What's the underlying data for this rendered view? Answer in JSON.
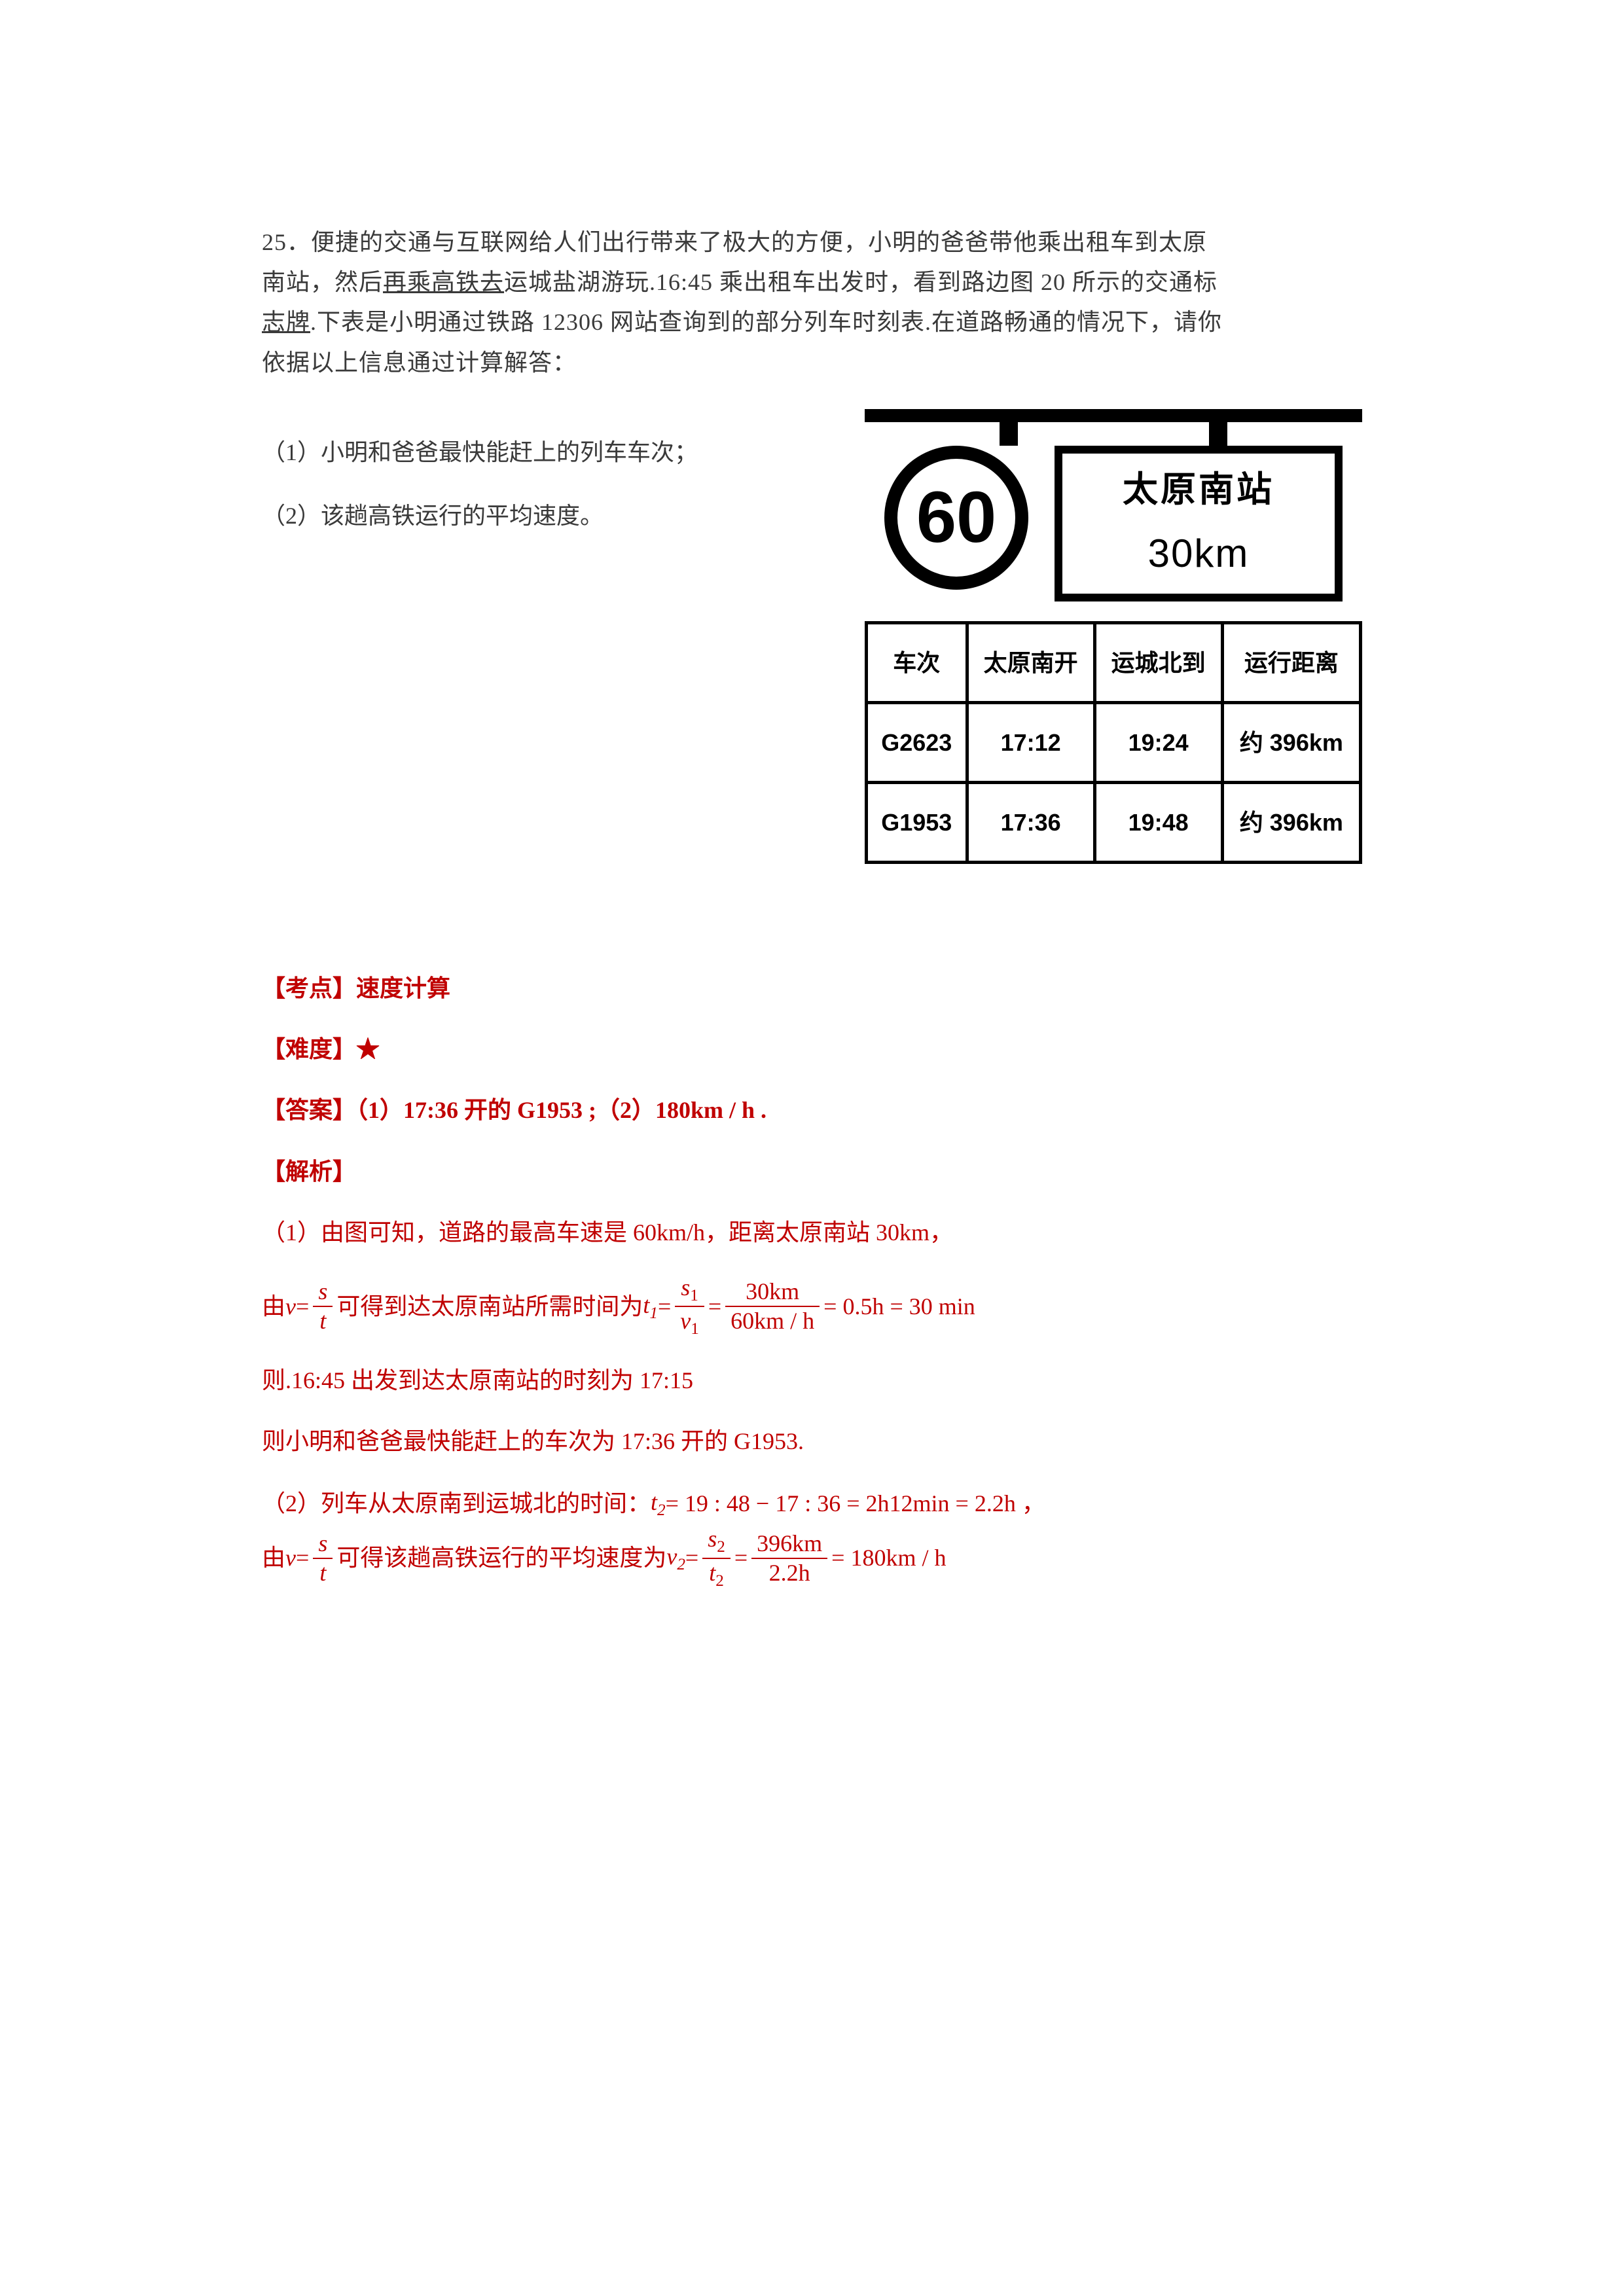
{
  "question": {
    "number": "25．",
    "text_line1": "便捷的交通与互联网给人们出行带来了极大的方便，小明的爸爸带他乘出租车到太原",
    "text_line2_pre": "南站，然后",
    "text_line2_underline": "再乘高铁去",
    "text_line2_post": "运城盐湖游玩.16:45 乘出租车出发时，看到路边图 20 所示的交通标",
    "text_line3_pre": "志牌",
    "text_line3_post": ".下表是小明通过铁路 12306 网站查询到的部分列车时刻表.在道路畅通的情况下，请你",
    "text_line4": "依据以上信息通过计算解答：",
    "sub1": "（1）小明和爸爸最快能赶上的列车车次；",
    "sub2": "（2）该趟高铁运行的平均速度。"
  },
  "sign": {
    "speed_limit": "60",
    "destination": "太原南站",
    "distance": "30km"
  },
  "table": {
    "headers": [
      "车次",
      "太原南开",
      "运城北到",
      "运行距离"
    ],
    "rows": [
      [
        "G2623",
        "17:12",
        "19:24",
        "约 396km"
      ],
      [
        "G1953",
        "17:36",
        "19:48",
        "约 396km"
      ]
    ]
  },
  "answer": {
    "topic_label": "【考点】",
    "topic": "速度计算",
    "difficulty_label": "【难度】",
    "difficulty": "★",
    "ans_label": "【答案】",
    "ans_text": "（1）17:36 开的 G1953 ;（2）180km / h .",
    "explain_label": "【解析】",
    "p1": "（1）由图可知，道路的最高车速是 60km/h，距离太原南站 30km，",
    "p2_prefix": "由",
    "p2_mid": "可得到达太原南站所需时间为",
    "p2_eq_rhs1_num": "30km",
    "p2_eq_rhs1_den": "60km / h",
    "p2_eq_tail": "= 0.5h = 30 min",
    "p3": "则.16:45 出发到达太原南站的时刻为 17:15",
    "p4": "则小明和爸爸最快能赶上的车次为 17:36 开的 G1953.",
    "p5_prefix": "（2）列车从太原南到运城北的时间：",
    "p5_eq": "= 19 : 48 − 17 : 36 = 2h12min = 2.2h ，",
    "p6_prefix": "由",
    "p6_mid": "可得该趟高铁运行的平均速度为",
    "p6_rhs_num": "396km",
    "p6_rhs_den": "2.2h",
    "p6_tail": "= 180km / h",
    "var_v": "v",
    "var_s": "s",
    "var_t": "t",
    "var_s1": "s",
    "var_v1": "v",
    "var_t1": "t",
    "var_s2": "s",
    "var_t2": "t",
    "var_v2_lhs": "v",
    "sub1": "1",
    "sub2": "2",
    "eq": " = "
  },
  "colors": {
    "text": "#3a3a3a",
    "answer": "#c00000",
    "black": "#000000"
  }
}
